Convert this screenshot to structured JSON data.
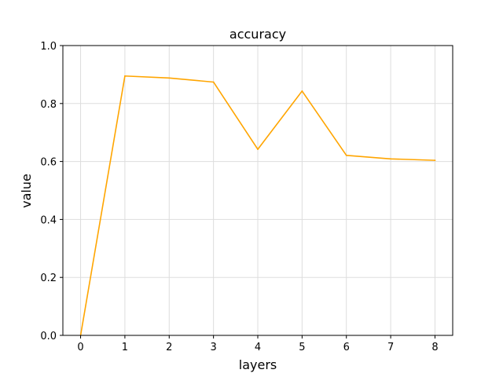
{
  "chart_data": {
    "type": "line",
    "title": "accuracy",
    "xlabel": "layers",
    "ylabel": "value",
    "x": [
      0,
      1,
      2,
      3,
      4,
      5,
      6,
      7,
      8
    ],
    "x_ticks": [
      "0",
      "1",
      "2",
      "3",
      "4",
      "5",
      "6",
      "7",
      "8"
    ],
    "y_ticks": [
      "0.0",
      "0.2",
      "0.4",
      "0.6",
      "0.8",
      "1.0"
    ],
    "xlim": [
      -0.4,
      8.4
    ],
    "ylim": [
      0,
      1
    ],
    "grid": true,
    "series": [
      {
        "values": [
          0.0,
          0.895,
          0.888,
          0.874,
          0.642,
          0.843,
          0.621,
          0.609,
          0.604
        ],
        "color": "#FFA500"
      }
    ]
  }
}
